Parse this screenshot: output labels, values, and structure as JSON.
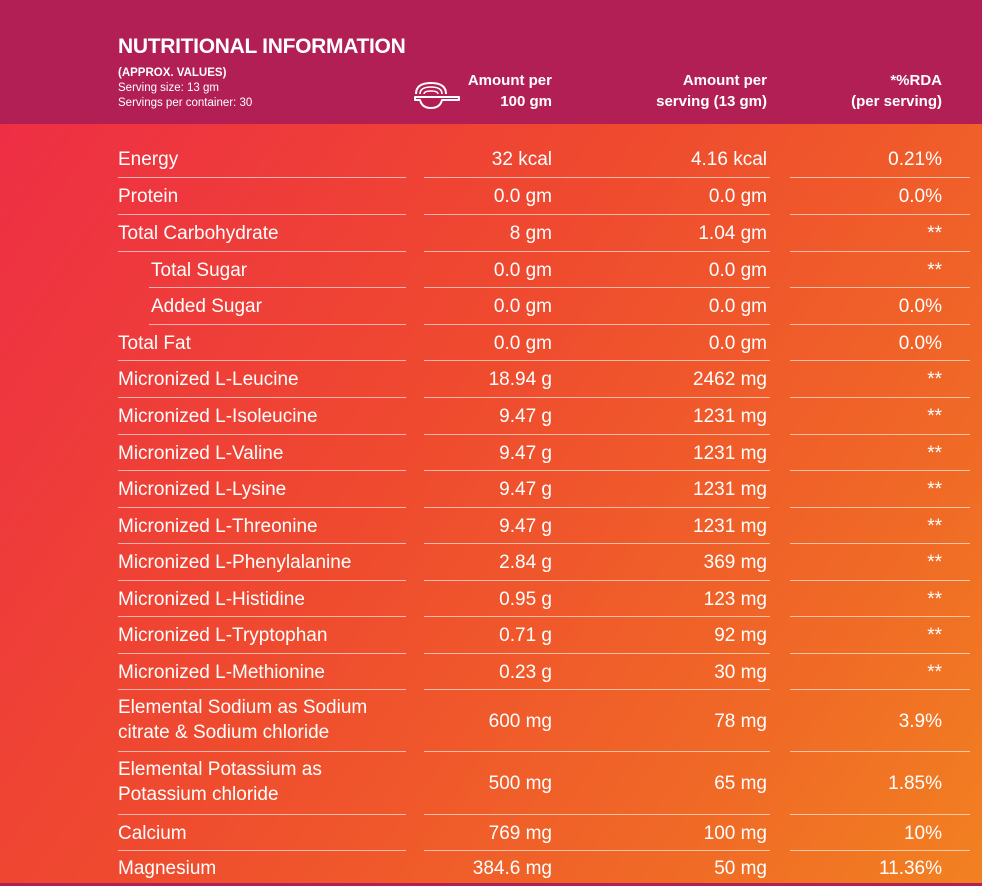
{
  "header": {
    "title": "NUTRITIONAL INFORMATION",
    "approx": "(APPROX. VALUES)",
    "serving_size": "Serving size: 13 gm",
    "servings_per_container": "Servings per container: 30",
    "col1": [
      "Amount per",
      "100 gm"
    ],
    "col2": [
      "Amount per",
      "serving (13 gm)"
    ],
    "col3": [
      "*%RDA",
      "(per serving)"
    ]
  },
  "colors": {
    "header_bg": "#b21f54",
    "gradient_start": "#ee2a48",
    "gradient_end": "#f28121",
    "text": "#ffffff"
  },
  "icons": {
    "scoop": "measuring-scoop-icon"
  },
  "rows": [
    {
      "name": [
        "Energy"
      ],
      "per100": "32 kcal",
      "perServing": "4.16 kcal",
      "rda": "0.21%",
      "sub": false
    },
    {
      "name": [
        "Protein"
      ],
      "per100": "0.0 gm",
      "perServing": "0.0 gm",
      "rda": "0.0%",
      "sub": false
    },
    {
      "name": [
        "Total Carbohydrate"
      ],
      "per100": "8 gm",
      "perServing": "1.04 gm",
      "rda": "**",
      "sub": false
    },
    {
      "name": [
        "Total Sugar"
      ],
      "per100": "0.0 gm",
      "perServing": "0.0 gm",
      "rda": "**",
      "sub": true
    },
    {
      "name": [
        "Added Sugar"
      ],
      "per100": "0.0 gm",
      "perServing": "0.0 gm",
      "rda": "0.0%",
      "sub": true
    },
    {
      "name": [
        "Total Fat"
      ],
      "per100": "0.0 gm",
      "perServing": "0.0 gm",
      "rda": "0.0%",
      "sub": false
    },
    {
      "name": [
        "Micronized L-Leucine"
      ],
      "per100": "18.94 g",
      "perServing": "2462 mg",
      "rda": "**",
      "sub": false
    },
    {
      "name": [
        "Micronized L-Isoleucine"
      ],
      "per100": "9.47 g",
      "perServing": "1231 mg",
      "rda": "**",
      "sub": false
    },
    {
      "name": [
        "Micronized L-Valine"
      ],
      "per100": "9.47 g",
      "perServing": "1231 mg",
      "rda": "**",
      "sub": false
    },
    {
      "name": [
        "Micronized L-Lysine"
      ],
      "per100": "9.47 g",
      "perServing": "1231 mg",
      "rda": "**",
      "sub": false
    },
    {
      "name": [
        "Micronized L-Threonine"
      ],
      "per100": "9.47 g",
      "perServing": "1231 mg",
      "rda": "**",
      "sub": false
    },
    {
      "name": [
        "Micronized L-Phenylalanine"
      ],
      "per100": "2.84 g",
      "perServing": "369 mg",
      "rda": "**",
      "sub": false
    },
    {
      "name": [
        "Micronized L-Histidine"
      ],
      "per100": "0.95 g",
      "perServing": "123 mg",
      "rda": "**",
      "sub": false
    },
    {
      "name": [
        "Micronized L-Tryptophan"
      ],
      "per100": "0.71 g",
      "perServing": "92 mg",
      "rda": "**",
      "sub": false
    },
    {
      "name": [
        "Micronized L-Methionine"
      ],
      "per100": "0.23 g",
      "perServing": "30 mg",
      "rda": "**",
      "sub": false
    },
    {
      "name": [
        "Elemental Sodium as Sodium",
        "citrate & Sodium chloride"
      ],
      "per100": "600 mg",
      "perServing": "78 mg",
      "rda": "3.9%",
      "sub": false
    },
    {
      "name": [
        "Elemental Potassium as",
        "Potassium chloride"
      ],
      "per100": "500 mg",
      "perServing": "65 mg",
      "rda": "1.85%",
      "sub": false
    },
    {
      "name": [
        "Calcium"
      ],
      "per100": "769 mg",
      "perServing": "100 mg",
      "rda": "10%",
      "sub": false
    },
    {
      "name": [
        "Magnesium"
      ],
      "per100": "384.6 mg",
      "perServing": "50 mg",
      "rda": "11.36%",
      "sub": false
    }
  ]
}
